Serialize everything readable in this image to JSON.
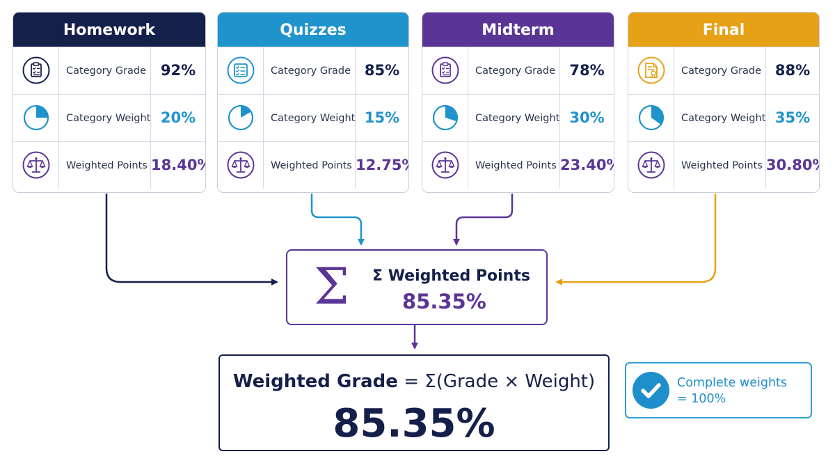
{
  "colors": {
    "homework": "#14204a",
    "quizzes": "#1f93cc",
    "midterm": "#5b3596",
    "final": "#e6a117",
    "accent_blue": "#1e8fcb",
    "dark_navy": "#14204a"
  },
  "categories": [
    {
      "name": "Homework",
      "rows": [
        {
          "label": "Category Grade",
          "value": "92%",
          "icon": "clipboard-checklist-icon"
        },
        {
          "label": "Category Weight",
          "value": "20%",
          "icon": "pie-slice-icon"
        },
        {
          "label": "Weighted Points",
          "value": "18.40%",
          "icon": "balance-scale-icon"
        }
      ]
    },
    {
      "name": "Quizzes",
      "rows": [
        {
          "label": "Category Grade",
          "value": "85%",
          "icon": "checklist-icon"
        },
        {
          "label": "Category Weight",
          "value": "15%",
          "icon": "pie-slice-icon"
        },
        {
          "label": "Weighted Points",
          "value": "12.75%",
          "icon": "balance-scale-icon"
        }
      ]
    },
    {
      "name": "Midterm",
      "rows": [
        {
          "label": "Category Grade",
          "value": "78%",
          "icon": "clipboard-checklist-icon"
        },
        {
          "label": "Category Weight",
          "value": "30%",
          "icon": "pie-slice-icon"
        },
        {
          "label": "Weighted Points",
          "value": "23.40%",
          "icon": "balance-scale-icon"
        }
      ]
    },
    {
      "name": "Final",
      "rows": [
        {
          "label": "Category Grade",
          "value": "88%",
          "icon": "certificate-document-icon"
        },
        {
          "label": "Category Weight",
          "value": "35%",
          "icon": "pie-slice-icon"
        },
        {
          "label": "Weighted Points",
          "value": "30.80%",
          "icon": "balance-scale-icon"
        }
      ]
    }
  ],
  "sum": {
    "symbol": "Σ",
    "title": "Σ Weighted Points",
    "value": "85.35%"
  },
  "result": {
    "formula_lhs": "Weighted Grade",
    "formula_eq": "=",
    "formula_rhs": "Σ(Grade × Weight)",
    "value": "85.35%"
  },
  "check": {
    "icon": "checkmark-circle-icon",
    "line1": "Complete weights",
    "line2": "= 100%"
  }
}
